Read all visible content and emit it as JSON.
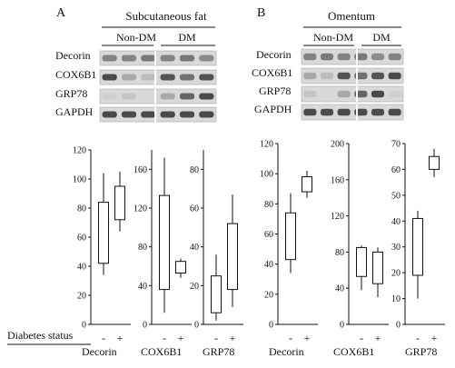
{
  "panels": [
    {
      "letter": "A",
      "tissue": "Subcutaneous fat",
      "group_labels": [
        "Non-DM",
        "DM"
      ],
      "blot_rows": [
        "Decorin",
        "COX6B1",
        "GRP78",
        "GAPDH"
      ]
    },
    {
      "letter": "B",
      "tissue": "Omentum",
      "group_labels": [
        "Non-DM",
        "DM"
      ],
      "blot_rows": [
        "Decorin",
        "COX6B1",
        "GRP78",
        "GAPDH"
      ]
    }
  ],
  "x_caption": "Diabetes status",
  "status_ticks": [
    "-",
    "+"
  ],
  "chart_data": [
    {
      "type": "box",
      "panel": "A",
      "protein": "Decorin",
      "categories": [
        "-",
        "+"
      ],
      "ylim": [
        0,
        120
      ],
      "yticks": [
        0,
        20,
        40,
        60,
        80,
        100,
        120
      ],
      "boxes": [
        {
          "min": 34,
          "q1": 42,
          "q3": 84,
          "max": 104
        },
        {
          "min": 64,
          "q1": 72,
          "q3": 95,
          "max": 105
        }
      ]
    },
    {
      "type": "box",
      "panel": "A",
      "protein": "COX6B1",
      "categories": [
        "-",
        "+"
      ],
      "ylim": [
        0,
        180
      ],
      "yticks": [
        0,
        40,
        80,
        120,
        160
      ],
      "boxes": [
        {
          "min": 12,
          "q1": 36,
          "q3": 133,
          "max": 172
        },
        {
          "min": 48,
          "q1": 53,
          "q3": 65,
          "max": 68
        }
      ]
    },
    {
      "type": "box",
      "panel": "A",
      "protein": "GRP78",
      "categories": [
        "-",
        "+"
      ],
      "ylim": [
        0,
        90
      ],
      "yticks": [
        0,
        20,
        40,
        60,
        80
      ],
      "boxes": [
        {
          "min": 2,
          "q1": 6,
          "q3": 25,
          "max": 36
        },
        {
          "min": 9,
          "q1": 18,
          "q3": 52,
          "max": 67
        }
      ]
    },
    {
      "type": "box",
      "panel": "B",
      "protein": "Decorin",
      "categories": [
        "-",
        "+"
      ],
      "ylim": [
        0,
        120
      ],
      "yticks": [
        0,
        20,
        40,
        60,
        80,
        100,
        120
      ],
      "boxes": [
        {
          "min": 34,
          "q1": 43,
          "q3": 74,
          "max": 87
        },
        {
          "min": 84,
          "q1": 88,
          "q3": 98,
          "max": 102
        }
      ]
    },
    {
      "type": "box",
      "panel": "B",
      "protein": "COX6B1",
      "categories": [
        "-",
        "+"
      ],
      "ylim": [
        0,
        200
      ],
      "yticks": [
        0,
        40,
        80,
        120,
        160,
        200
      ],
      "boxes": [
        {
          "min": 38,
          "q1": 53,
          "q3": 85,
          "max": 87
        },
        {
          "min": 30,
          "q1": 45,
          "q3": 80,
          "max": 85
        }
      ]
    },
    {
      "type": "box",
      "panel": "B",
      "protein": "GRP78",
      "categories": [
        "-",
        "+"
      ],
      "ylim": [
        0,
        70
      ],
      "yticks": [
        0,
        10,
        20,
        30,
        40,
        50,
        60,
        70
      ],
      "boxes": [
        {
          "min": 10,
          "q1": 19,
          "q3": 41,
          "max": 44
        },
        {
          "min": 57,
          "q1": 60,
          "q3": 65,
          "max": 68
        }
      ]
    }
  ]
}
